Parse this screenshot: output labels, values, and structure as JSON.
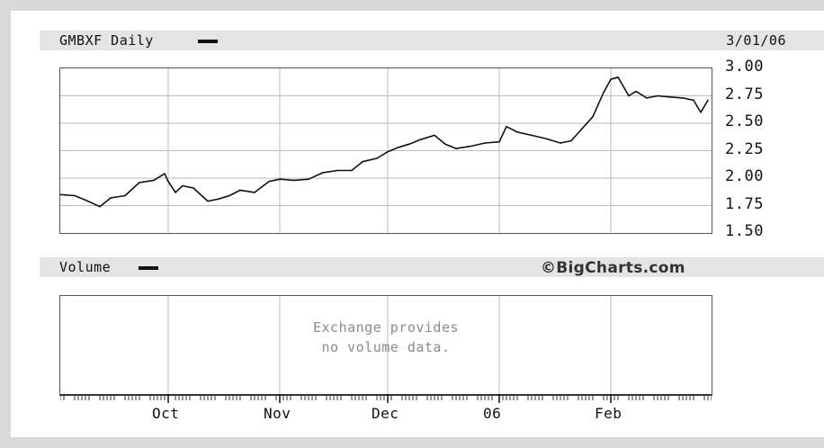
{
  "chart_data": {
    "type": "line",
    "title": "GMBXF Daily",
    "date": "3/01/06",
    "x_tick_labels": [
      "Oct",
      "Nov",
      "Dec",
      "06",
      "Feb"
    ],
    "y_tick_labels": [
      "3.00",
      "2.75",
      "2.50",
      "2.25",
      "2.00",
      "1.75",
      "1.50"
    ],
    "ylim": [
      1.5,
      3.0
    ],
    "grid": true,
    "series": [
      {
        "name": "GMBXF",
        "x": [
          "2005-09-01",
          "2005-09-05",
          "2005-09-08",
          "2005-09-12",
          "2005-09-15",
          "2005-09-19",
          "2005-09-23",
          "2005-09-27",
          "2005-09-30",
          "2005-10-01",
          "2005-10-03",
          "2005-10-05",
          "2005-10-08",
          "2005-10-12",
          "2005-10-15",
          "2005-10-18",
          "2005-10-21",
          "2005-10-25",
          "2005-10-29",
          "2005-11-01",
          "2005-11-05",
          "2005-11-09",
          "2005-11-13",
          "2005-11-17",
          "2005-11-21",
          "2005-11-24",
          "2005-11-28",
          "2005-12-01",
          "2005-12-04",
          "2005-12-07",
          "2005-12-10",
          "2005-12-14",
          "2005-12-17",
          "2005-12-20",
          "2005-12-24",
          "2005-12-28",
          "2006-01-01",
          "2006-01-03",
          "2006-01-06",
          "2006-01-10",
          "2006-01-14",
          "2006-01-18",
          "2006-01-21",
          "2006-01-24",
          "2006-01-27",
          "2006-01-30",
          "2006-02-01",
          "2006-02-03",
          "2006-02-06",
          "2006-02-08",
          "2006-02-11",
          "2006-02-14",
          "2006-02-17",
          "2006-02-21",
          "2006-02-24",
          "2006-02-26",
          "2006-02-28"
        ],
        "y": [
          1.85,
          1.84,
          1.8,
          1.74,
          1.82,
          1.84,
          1.96,
          1.98,
          2.04,
          1.97,
          1.87,
          1.93,
          1.91,
          1.79,
          1.81,
          1.84,
          1.89,
          1.87,
          1.97,
          1.99,
          1.98,
          1.99,
          2.05,
          2.07,
          2.07,
          2.15,
          2.18,
          2.24,
          2.28,
          2.31,
          2.35,
          2.39,
          2.31,
          2.27,
          2.29,
          2.32,
          2.33,
          2.47,
          2.42,
          2.39,
          2.36,
          2.32,
          2.34,
          2.45,
          2.56,
          2.78,
          2.9,
          2.92,
          2.75,
          2.79,
          2.73,
          2.75,
          2.74,
          2.73,
          2.71,
          2.6,
          2.71
        ]
      }
    ]
  },
  "volume_panel": {
    "title": "Volume",
    "credit": "©BigCharts.com",
    "message_line1": "Exchange provides",
    "message_line2": "no volume data."
  },
  "colors": {
    "line": "#111111",
    "grid": "#bbbbbb",
    "frame": "#d9d9d9",
    "header_bar": "#e4e4e4"
  }
}
